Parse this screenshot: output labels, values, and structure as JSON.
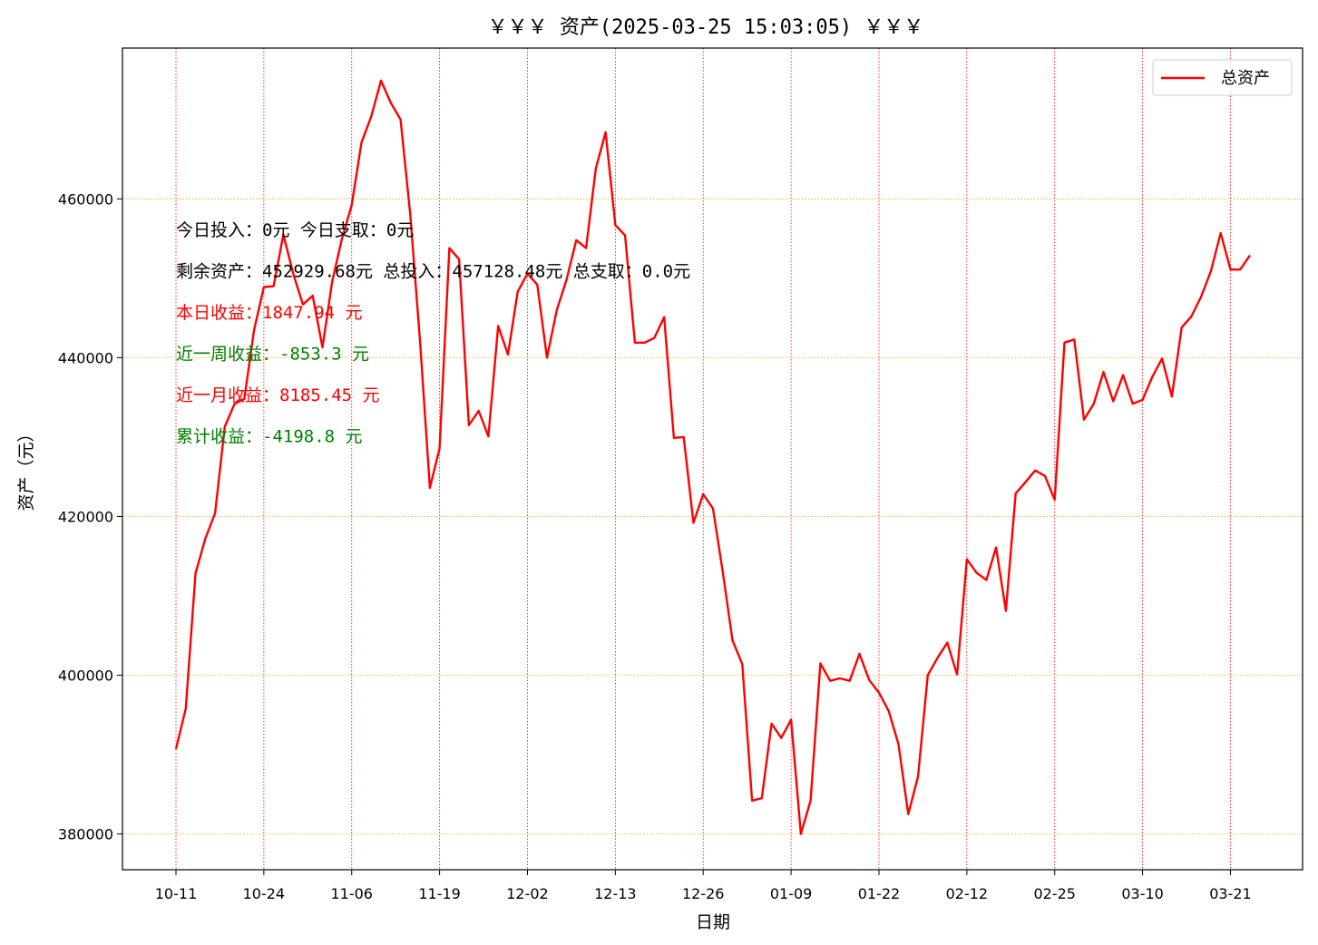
{
  "chart_data": {
    "type": "line",
    "title": "￥￥￥ 资产(2025-03-25 15:03:05) ￥￥￥",
    "xlabel": "日期",
    "ylabel": "资产（元）",
    "ylim": [
      375500,
      479000
    ],
    "yticks": [
      380000,
      400000,
      420000,
      440000,
      460000
    ],
    "ytick_labels": [
      "380000",
      "400000",
      "420000",
      "440000",
      "460000"
    ],
    "xticks": [
      {
        "label": "10-11",
        "index": 0
      },
      {
        "label": "10-24",
        "index": 9
      },
      {
        "label": "11-06",
        "index": 18
      },
      {
        "label": "11-19",
        "index": 27
      },
      {
        "label": "12-02",
        "index": 36
      },
      {
        "label": "12-13",
        "index": 45
      },
      {
        "label": "12-26",
        "index": 54
      },
      {
        "label": "01-09",
        "index": 63
      },
      {
        "label": "01-22",
        "index": 72
      },
      {
        "label": "02-12",
        "index": 81
      },
      {
        "label": "02-25",
        "index": 90
      },
      {
        "label": "03-10",
        "index": 99
      },
      {
        "label": "03-21",
        "index": 108
      }
    ],
    "grid": {
      "x": true,
      "y": true,
      "x_color": "#ff0000",
      "y_color": "#ffa500"
    },
    "legend": {
      "position": "top-right"
    },
    "series": [
      {
        "name": "总资产",
        "color": "#ff0000",
        "values": [
          390700,
          395800,
          412800,
          417200,
          420400,
          431300,
          434200,
          434800,
          443500,
          448900,
          449000,
          455500,
          450600,
          446700,
          447800,
          441300,
          449600,
          455000,
          459200,
          467100,
          470400,
          474900,
          472100,
          470000,
          458000,
          442000,
          423600,
          428600,
          453800,
          452400,
          431500,
          433300,
          430100,
          444000,
          440400,
          448300,
          450600,
          449200,
          440000,
          446000,
          449800,
          454800,
          453800,
          463800,
          468400,
          456700,
          455400,
          441900,
          441900,
          442500,
          445100,
          429900,
          430000,
          419200,
          422800,
          421000,
          413000,
          404400,
          401400,
          384200,
          384500,
          393900,
          392100,
          394400,
          380000,
          384200,
          401500,
          399300,
          399600,
          399300,
          402700,
          399400,
          397800,
          395500,
          391300,
          382500,
          387200,
          400000,
          402200,
          404100,
          400100,
          414600,
          412900,
          412000,
          416100,
          408100,
          422900,
          424300,
          425800,
          425100,
          422100,
          441900,
          442300,
          432200,
          434200,
          438200,
          434500,
          437800,
          434200,
          434700,
          437600,
          439900,
          435100,
          443800,
          445200,
          447700,
          450900,
          455700,
          451100,
          451100,
          452900
        ]
      }
    ]
  },
  "annotations": [
    {
      "text": "今日投入：0元 今日支取：0元",
      "color": "#000000"
    },
    {
      "text": "剩余资产：452929.68元 总投入：457128.48元  总支取：0.0元",
      "color": "#000000"
    },
    {
      "text": "本日收益：1847.94 元",
      "color": "#ff0000"
    },
    {
      "text": "近一周收益：-853.3 元",
      "color": "#008000"
    },
    {
      "text": "近一月收益：8185.45 元",
      "color": "#ff0000"
    },
    {
      "text": "累计收益：-4198.8 元",
      "color": "#008000"
    }
  ]
}
